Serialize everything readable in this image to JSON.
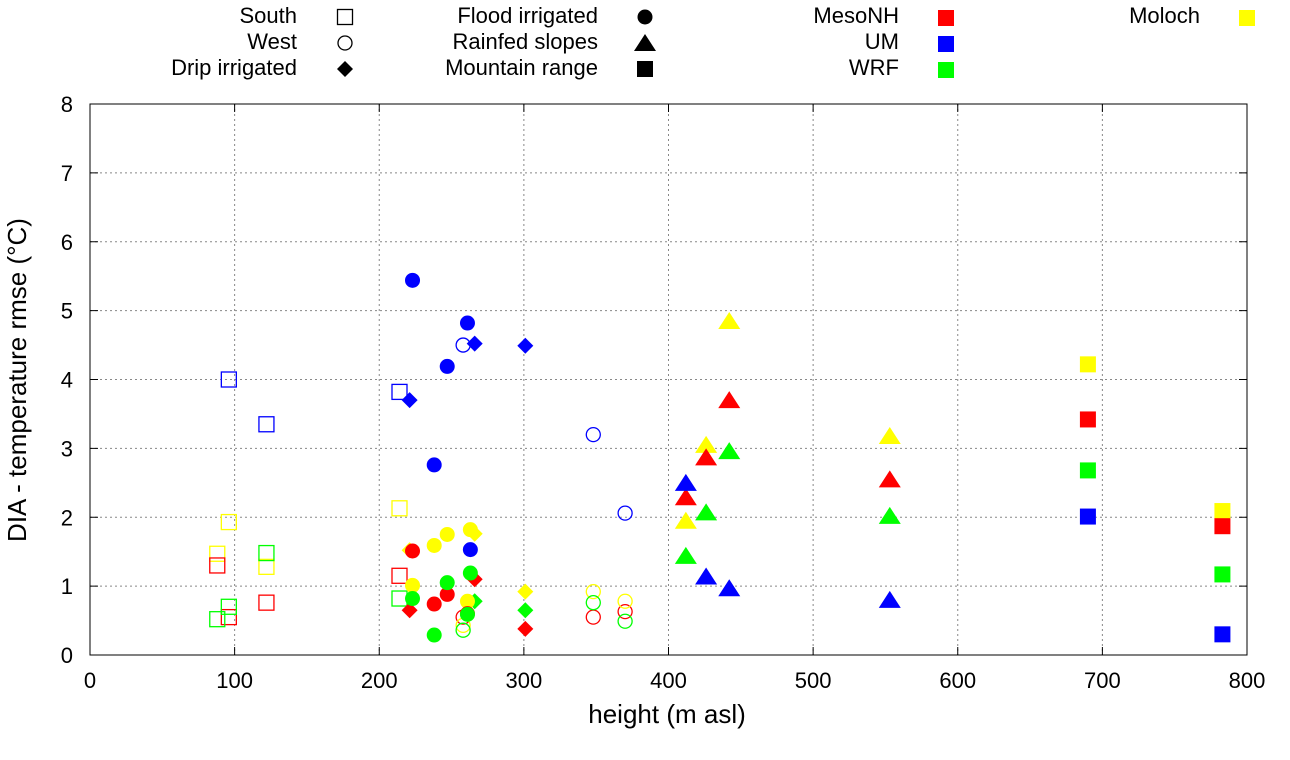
{
  "chart_data": {
    "type": "scatter",
    "title": "",
    "xlabel": "height (m asl)",
    "ylabel": "DIA - temperature rmse (°C)",
    "xlim": [
      0,
      800
    ],
    "ylim": [
      0,
      8
    ],
    "xticks": [
      0,
      100,
      200,
      300,
      400,
      500,
      600,
      700,
      800
    ],
    "yticks": [
      0,
      1,
      2,
      3,
      4,
      5,
      6,
      7,
      8
    ],
    "grid": true,
    "legend_location": "top",
    "colors": {
      "MesoNH": "#ff0000",
      "UM": "#0000ff",
      "WRF": "#00ff00",
      "Moloch": "#ffff00",
      "key": "#000000"
    },
    "legend": {
      "shapes": [
        {
          "label": "South",
          "marker": "square-open"
        },
        {
          "label": "West",
          "marker": "circle-open"
        },
        {
          "label": "Drip irrigated",
          "marker": "diamond"
        },
        {
          "label": "Flood irrigated",
          "marker": "circle"
        },
        {
          "label": "Rainfed slopes",
          "marker": "triangle"
        },
        {
          "label": "Mountain range",
          "marker": "square"
        }
      ],
      "models": [
        {
          "label": "MesoNH"
        },
        {
          "label": "UM"
        },
        {
          "label": "WRF"
        },
        {
          "label": "Moloch"
        }
      ]
    },
    "series": [
      {
        "name": "South",
        "marker": "square-open",
        "points": [
          {
            "model": "UM",
            "x": 96,
            "y": 4.0
          },
          {
            "model": "UM",
            "x": 122,
            "y": 3.35
          },
          {
            "model": "UM",
            "x": 214,
            "y": 3.82
          },
          {
            "model": "Moloch",
            "x": 96,
            "y": 1.93
          },
          {
            "model": "Moloch",
            "x": 88,
            "y": 1.47
          },
          {
            "model": "Moloch",
            "x": 122,
            "y": 1.28
          },
          {
            "model": "Moloch",
            "x": 214,
            "y": 2.13
          },
          {
            "model": "MesoNH",
            "x": 88,
            "y": 1.3
          },
          {
            "model": "MesoNH",
            "x": 96,
            "y": 0.55
          },
          {
            "model": "MesoNH",
            "x": 122,
            "y": 0.76
          },
          {
            "model": "MesoNH",
            "x": 214,
            "y": 1.15
          },
          {
            "model": "WRF",
            "x": 88,
            "y": 0.52
          },
          {
            "model": "WRF",
            "x": 96,
            "y": 0.7
          },
          {
            "model": "WRF",
            "x": 122,
            "y": 1.48
          },
          {
            "model": "WRF",
            "x": 214,
            "y": 0.82
          }
        ]
      },
      {
        "name": "West",
        "marker": "circle-open",
        "points": [
          {
            "model": "UM",
            "x": 258,
            "y": 4.5
          },
          {
            "model": "UM",
            "x": 348,
            "y": 3.2
          },
          {
            "model": "UM",
            "x": 370,
            "y": 2.06
          },
          {
            "model": "MesoNH",
            "x": 258,
            "y": 0.55
          },
          {
            "model": "MesoNH",
            "x": 348,
            "y": 0.55
          },
          {
            "model": "MesoNH",
            "x": 370,
            "y": 0.63
          },
          {
            "model": "Moloch",
            "x": 258,
            "y": 0.43
          },
          {
            "model": "Moloch",
            "x": 348,
            "y": 0.92
          },
          {
            "model": "Moloch",
            "x": 370,
            "y": 0.78
          },
          {
            "model": "WRF",
            "x": 258,
            "y": 0.36
          },
          {
            "model": "WRF",
            "x": 348,
            "y": 0.76
          },
          {
            "model": "WRF",
            "x": 370,
            "y": 0.49
          }
        ]
      },
      {
        "name": "Drip irrigated",
        "marker": "diamond",
        "points": [
          {
            "model": "UM",
            "x": 221,
            "y": 3.7
          },
          {
            "model": "UM",
            "x": 266,
            "y": 4.52
          },
          {
            "model": "UM",
            "x": 301,
            "y": 4.49
          },
          {
            "model": "MesoNH",
            "x": 221,
            "y": 0.65
          },
          {
            "model": "MesoNH",
            "x": 266,
            "y": 1.1
          },
          {
            "model": "MesoNH",
            "x": 301,
            "y": 0.38
          },
          {
            "model": "WRF",
            "x": 266,
            "y": 0.78
          },
          {
            "model": "WRF",
            "x": 301,
            "y": 0.65
          },
          {
            "model": "Moloch",
            "x": 221,
            "y": 1.52
          },
          {
            "model": "Moloch",
            "x": 266,
            "y": 1.76
          },
          {
            "model": "Moloch",
            "x": 301,
            "y": 0.92
          }
        ]
      },
      {
        "name": "Flood irrigated",
        "marker": "circle",
        "points": [
          {
            "model": "UM",
            "x": 223,
            "y": 5.44
          },
          {
            "model": "UM",
            "x": 261,
            "y": 4.82
          },
          {
            "model": "UM",
            "x": 247,
            "y": 4.19
          },
          {
            "model": "UM",
            "x": 238,
            "y": 2.76
          },
          {
            "model": "UM",
            "x": 263,
            "y": 1.53
          },
          {
            "model": "Moloch",
            "x": 263,
            "y": 1.82
          },
          {
            "model": "Moloch",
            "x": 247,
            "y": 1.75
          },
          {
            "model": "Moloch",
            "x": 238,
            "y": 1.59
          },
          {
            "model": "Moloch",
            "x": 223,
            "y": 1.01
          },
          {
            "model": "Moloch",
            "x": 261,
            "y": 0.78
          },
          {
            "model": "MesoNH",
            "x": 223,
            "y": 1.51
          },
          {
            "model": "MesoNH",
            "x": 247,
            "y": 0.88
          },
          {
            "model": "MesoNH",
            "x": 238,
            "y": 0.74
          },
          {
            "model": "MesoNH",
            "x": 261,
            "y": 0.6
          },
          {
            "model": "WRF",
            "x": 263,
            "y": 1.19
          },
          {
            "model": "WRF",
            "x": 247,
            "y": 1.05
          },
          {
            "model": "WRF",
            "x": 223,
            "y": 0.82
          },
          {
            "model": "WRF",
            "x": 261,
            "y": 0.59
          },
          {
            "model": "WRF",
            "x": 238,
            "y": 0.29
          }
        ]
      },
      {
        "name": "Rainfed slopes",
        "marker": "triangle",
        "points": [
          {
            "model": "Moloch",
            "x": 442,
            "y": 4.85
          },
          {
            "model": "Moloch",
            "x": 426,
            "y": 3.05
          },
          {
            "model": "Moloch",
            "x": 553,
            "y": 3.18
          },
          {
            "model": "Moloch",
            "x": 412,
            "y": 1.95
          },
          {
            "model": "MesoNH",
            "x": 442,
            "y": 3.7
          },
          {
            "model": "MesoNH",
            "x": 426,
            "y": 2.87
          },
          {
            "model": "MesoNH",
            "x": 553,
            "y": 2.55
          },
          {
            "model": "MesoNH",
            "x": 412,
            "y": 2.29
          },
          {
            "model": "UM",
            "x": 412,
            "y": 2.5
          },
          {
            "model": "UM",
            "x": 426,
            "y": 1.14
          },
          {
            "model": "UM",
            "x": 442,
            "y": 0.97
          },
          {
            "model": "UM",
            "x": 553,
            "y": 0.8
          },
          {
            "model": "WRF",
            "x": 442,
            "y": 2.96
          },
          {
            "model": "WRF",
            "x": 426,
            "y": 2.07
          },
          {
            "model": "WRF",
            "x": 553,
            "y": 2.02
          },
          {
            "model": "WRF",
            "x": 412,
            "y": 1.44
          }
        ]
      },
      {
        "name": "Mountain range",
        "marker": "square",
        "points": [
          {
            "model": "Moloch",
            "x": 690,
            "y": 4.22
          },
          {
            "model": "MesoNH",
            "x": 690,
            "y": 3.42
          },
          {
            "model": "WRF",
            "x": 690,
            "y": 2.68
          },
          {
            "model": "UM",
            "x": 690,
            "y": 2.01
          },
          {
            "model": "Moloch",
            "x": 783,
            "y": 2.09
          },
          {
            "model": "MesoNH",
            "x": 783,
            "y": 1.87
          },
          {
            "model": "WRF",
            "x": 783,
            "y": 1.17
          },
          {
            "model": "UM",
            "x": 783,
            "y": 0.3
          }
        ]
      }
    ]
  }
}
